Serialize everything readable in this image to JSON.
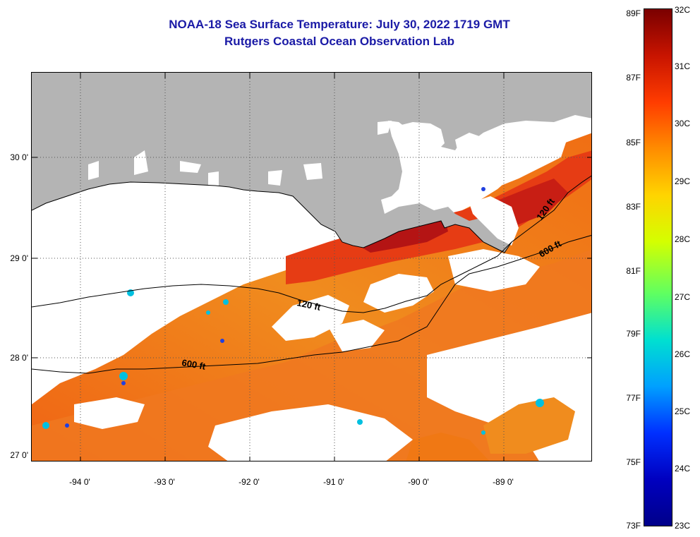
{
  "header": {
    "title": "NOAA-18 Sea Surface Temperature:  July 30, 2022 1719 GMT",
    "subtitle": "Rutgers Coastal Ocean Observation Lab"
  },
  "map": {
    "lat_labels": [
      "30 0'",
      "29 0'",
      "28 0'",
      "27 0'"
    ],
    "lon_labels": [
      "-94 0'",
      "-93 0'",
      "-92 0'",
      "-91 0'",
      "-90 0'",
      "-89 0'"
    ],
    "contour_labels": [
      "120 ft",
      "600 ft",
      "120 ft",
      "600 ft"
    ],
    "colors": {
      "land": "#b4b4b4",
      "cloud": "#ffffff",
      "hot": "#b41414",
      "warm": "#e63c14",
      "mid": "#f07814",
      "cool": "#f59628"
    }
  },
  "colorbar": {
    "fahrenheit_labels": [
      "89F",
      "87F",
      "85F",
      "83F",
      "81F",
      "79F",
      "77F",
      "75F",
      "73F"
    ],
    "celsius_labels": [
      "32C",
      "31C",
      "30C",
      "29C",
      "28C",
      "27C",
      "26C",
      "25C",
      "24C",
      "23C"
    ],
    "gradient_stops": [
      "#7a0000",
      "#c81400",
      "#ff3c00",
      "#ff8c00",
      "#ffd400",
      "#d4ff00",
      "#60ff60",
      "#00e0d0",
      "#00a0ff",
      "#0030ff",
      "#0000c0",
      "#00008a"
    ]
  }
}
